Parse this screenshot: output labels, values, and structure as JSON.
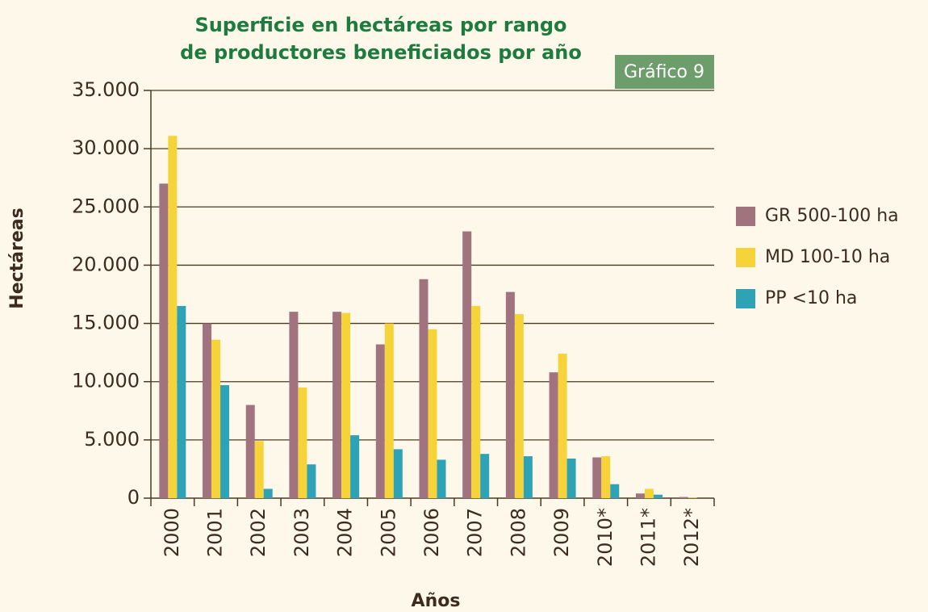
{
  "chart_data": {
    "type": "bar",
    "title": [
      "Superficie en hectáreas por rango",
      "de productores beneficiados por año"
    ],
    "badge": "Gráfico 9",
    "x_label": "Años",
    "y_label": "Hectáreas",
    "categories": [
      "2000",
      "2001",
      "2002",
      "2003",
      "2004",
      "2005",
      "2006",
      "2007",
      "2008",
      "2009",
      "2010*",
      "2011*",
      "2012*"
    ],
    "series": [
      {
        "name": "GR 500-100 ha",
        "color": "#a0737e",
        "values": [
          27000,
          15000,
          8000,
          16000,
          16000,
          13200,
          18800,
          22900,
          17700,
          10800,
          3500,
          400,
          100
        ]
      },
      {
        "name": "MD 100-10 ha",
        "color": "#f7d33a",
        "values": [
          31100,
          13600,
          4900,
          9500,
          15900,
          15000,
          14500,
          16500,
          15800,
          12400,
          3600,
          800,
          50
        ]
      },
      {
        "name": "PP <10 ha",
        "color": "#2ea3b5",
        "values": [
          16500,
          9700,
          800,
          2900,
          5400,
          4200,
          3300,
          3800,
          3600,
          3400,
          1200,
          300,
          0
        ]
      }
    ],
    "ylim": [
      0,
      35000
    ],
    "yticks": [
      0,
      {
        "value": 5000,
        "label": "5.000"
      },
      {
        "value": 10000,
        "label": "10.000"
      },
      {
        "value": 15000,
        "label": "15.000"
      },
      {
        "value": 20000,
        "label": "20.000"
      },
      {
        "value": 25000,
        "label": "25.000"
      },
      {
        "value": 30000,
        "label": "30.000"
      },
      {
        "value": 35000,
        "label": "35.000"
      }
    ],
    "grid": true,
    "legend": "right"
  }
}
